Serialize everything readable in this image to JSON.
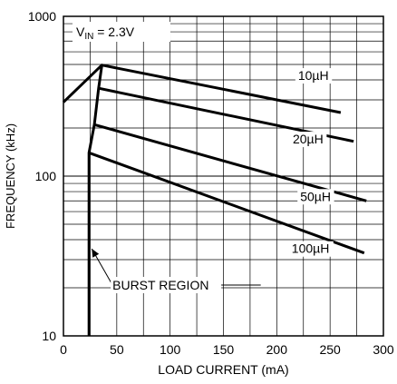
{
  "chart_data": {
    "type": "line",
    "title": "",
    "xlabel": "LOAD CURRENT (mA)",
    "ylabel": "FREQUENCY (kHz)",
    "xlim": [
      0,
      300
    ],
    "ylim": [
      10,
      1000
    ],
    "yscale": "log",
    "grid": true,
    "x_ticks": [
      "0",
      "50",
      "100",
      "150",
      "200",
      "250",
      "300"
    ],
    "y_ticks": [
      "10",
      "100",
      "1000"
    ],
    "annotation_vin_main": "V",
    "annotation_vin_sub": "IN",
    "annotation_vin_rest": " = 2.3V",
    "annotation_burst": "BURST REGION",
    "burst_current_mA": 24,
    "burst_label_point": [
      24,
      38
    ],
    "series": [
      {
        "name": "10µH",
        "label_at": [
          220,
          400
        ],
        "points": [
          [
            0,
            290
          ],
          [
            36,
            495
          ],
          [
            260,
            250
          ]
        ]
      },
      {
        "name": "20µH",
        "label_at": [
          215,
          160
        ],
        "points": [
          [
            33,
            355
          ],
          [
            272,
            165
          ]
        ]
      },
      {
        "name": "50µH",
        "label_at": [
          222,
          70
        ],
        "points": [
          [
            29,
            210
          ],
          [
            284,
            70
          ]
        ]
      },
      {
        "name": "100µH",
        "label_at": [
          214,
          33
        ],
        "points": [
          [
            24,
            140
          ],
          [
            282,
            33
          ]
        ]
      }
    ],
    "envelope": [
      [
        24,
        10
      ],
      [
        24,
        140
      ],
      [
        29,
        210
      ],
      [
        33,
        355
      ],
      [
        36,
        495
      ]
    ]
  }
}
